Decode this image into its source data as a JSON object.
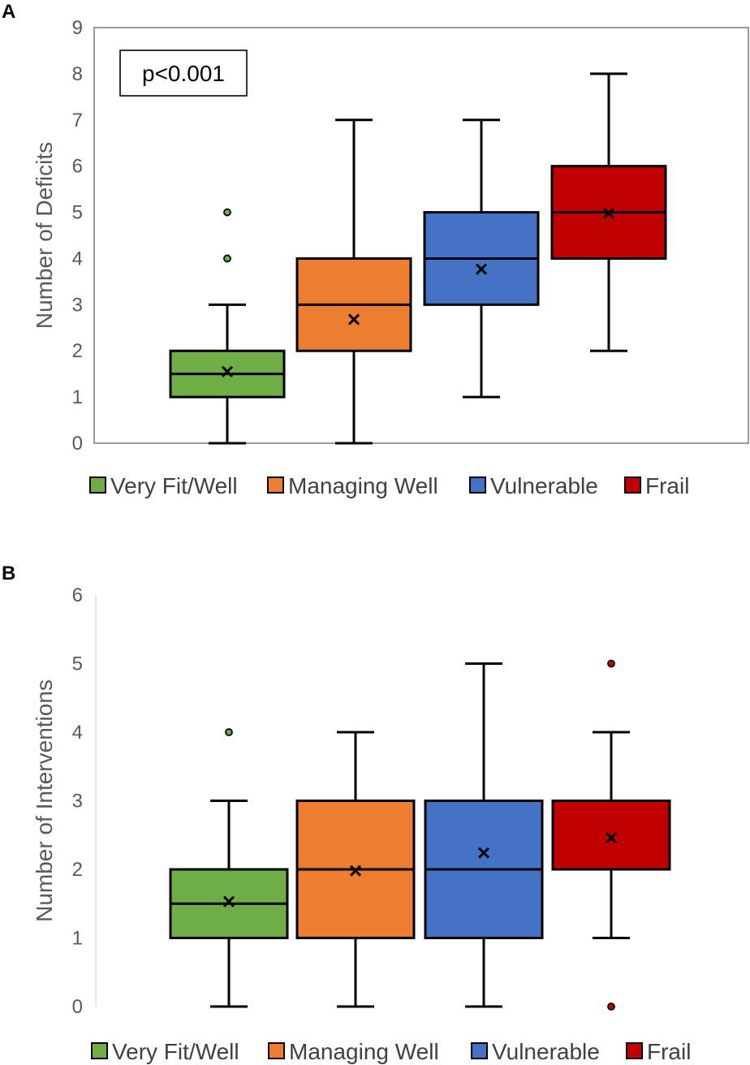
{
  "chart_data": [
    {
      "panel": "A",
      "type": "box",
      "title": "",
      "xlabel": "",
      "ylabel": "Number of Deficits",
      "ylim": [
        0,
        9
      ],
      "yticks": [
        0,
        1,
        2,
        3,
        4,
        5,
        6,
        7,
        8,
        9
      ],
      "annotation": "p<0.001",
      "series": [
        {
          "name": "Very Fit/Well",
          "color": "#70AD47",
          "whisker_low": 0,
          "q1": 1,
          "median": 1.5,
          "q3": 2,
          "whisker_high": 3,
          "mean": 1.55,
          "outliers": [
            4,
            5
          ]
        },
        {
          "name": "Managing Well",
          "color": "#ED7D31",
          "whisker_low": 0,
          "q1": 2,
          "median": 3,
          "q3": 4,
          "whisker_high": 7,
          "mean": 2.68,
          "outliers": []
        },
        {
          "name": "Vulnerable",
          "color": "#4472C4",
          "whisker_low": 1,
          "q1": 3,
          "median": 4,
          "q3": 5,
          "whisker_high": 7,
          "mean": 3.77,
          "outliers": []
        },
        {
          "name": "Frail",
          "color": "#C00000",
          "whisker_low": 2,
          "q1": 4,
          "median": 5,
          "q3": 6,
          "whisker_high": 8,
          "mean": 4.98,
          "outliers": []
        }
      ],
      "legend": [
        "Very Fit/Well",
        "Managing Well",
        "Vulnerable",
        "Frail"
      ]
    },
    {
      "panel": "B",
      "type": "box",
      "title": "",
      "xlabel": "",
      "ylabel": "Number of Interventions",
      "ylim": [
        0,
        6
      ],
      "yticks": [
        0,
        1,
        2,
        3,
        4,
        5,
        6
      ],
      "series": [
        {
          "name": "Very Fit/Well",
          "color": "#70AD47",
          "whisker_low": 0,
          "q1": 1,
          "median": 1.5,
          "q3": 2,
          "whisker_high": 3,
          "mean": 1.53,
          "outliers": [
            4
          ]
        },
        {
          "name": "Managing Well",
          "color": "#ED7D31",
          "whisker_low": 0,
          "q1": 1,
          "median": 2,
          "q3": 3,
          "whisker_high": 4,
          "mean": 1.98,
          "outliers": []
        },
        {
          "name": "Vulnerable",
          "color": "#4472C4",
          "whisker_low": 0,
          "q1": 1,
          "median": 2,
          "q3": 3,
          "whisker_high": 5,
          "mean": 2.24,
          "outliers": []
        },
        {
          "name": "Frail",
          "color": "#C00000",
          "whisker_low": 1,
          "q1": 2,
          "median": 3,
          "q3": 3,
          "whisker_high": 4,
          "mean": 2.46,
          "outliers": [
            0,
            5
          ]
        }
      ],
      "legend": [
        "Very Fit/Well",
        "Managing Well",
        "Vulnerable",
        "Frail"
      ]
    }
  ]
}
